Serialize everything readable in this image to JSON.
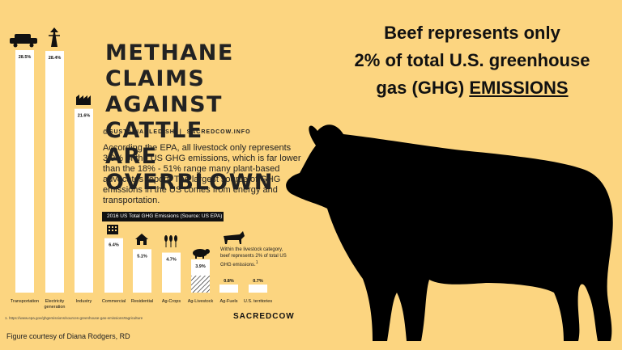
{
  "slide": {
    "title_line1": "Beef represents only",
    "title_line2": "2% of total U.S. greenhouse",
    "title_line3": "gas (GHG) ",
    "title_line3_underlined": "EMISSIONS",
    "credit": "Figure courtesy of Diana Rodgers, RD"
  },
  "infographic": {
    "headline_line1": "METHANE CLAIMS",
    "headline_line2": "AGAINST CATTLE",
    "headline_line3": "ARE OVERBLOWN",
    "handle1": "@SUSTAINABLEDISH",
    "handle2": "SACREDCOW.INFO",
    "body": "According the EPA, all livestock only represents 3.9% of the US GHG emissions, which is far lower than the 18% - 51% range many plant-based advocates report. The largest source of GHG emissions in the US comes from energy and transportation.",
    "beef_note": "Within the livestock category, beef represents 2% of total US GHG emissions.",
    "footnote": "1. https://www.epa.gov/ghgemissions/sources-greenhouse-gas-emissions#agriculture",
    "brand": "SACREDCOW"
  },
  "colors": {
    "background": "#fcd580",
    "bar": "#ffffff",
    "ink": "#111111",
    "cow": "#000000"
  },
  "chart_data": {
    "type": "bar",
    "title": "2016 US Total GHG Emissions (Source: US EPA)",
    "categories": [
      "Transportation",
      "Electricity generation",
      "Industry",
      "Commercial",
      "Residential",
      "Ag-Crops",
      "Ag-Livestock",
      "Ag-Fuels",
      "U.S. territories"
    ],
    "values": [
      28.5,
      28.4,
      21.6,
      6.4,
      5.1,
      4.7,
      3.9,
      0.8,
      0.7
    ],
    "value_labels": [
      "28.5%",
      "28.4%",
      "21.6%",
      "6.4%",
      "5.1%",
      "4.7%",
      "3.9%",
      "0.8%",
      "0.7%"
    ],
    "icons": [
      "car-icon",
      "power-tower-icon",
      "factory-icon",
      "office-building-icon",
      "house-icon",
      "wheat-icon",
      "pig-icon",
      "",
      ""
    ],
    "beef_share": 2.0,
    "ylim": [
      0,
      28.5
    ],
    "grid": false,
    "legend": "none"
  }
}
